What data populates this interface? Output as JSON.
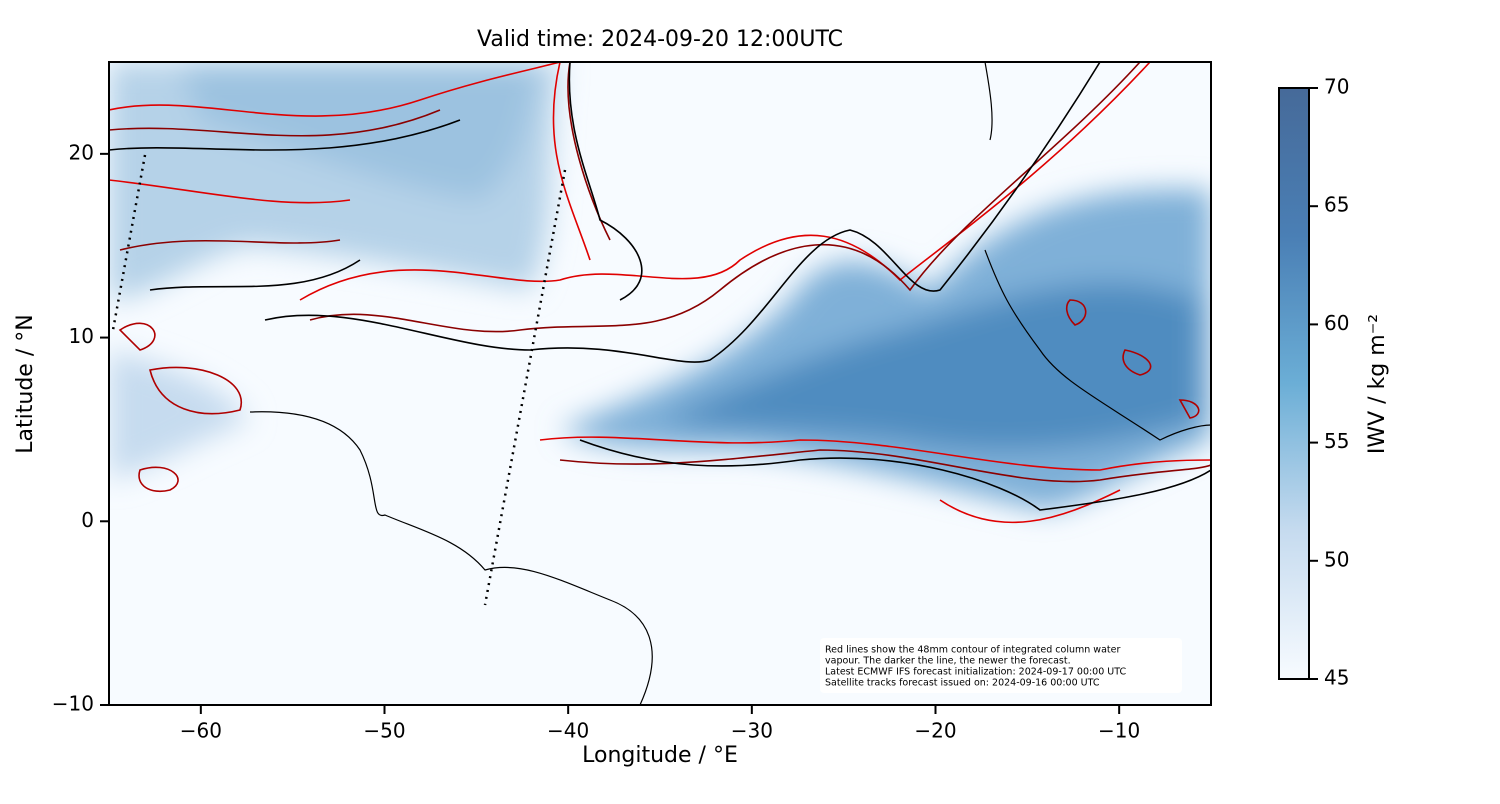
{
  "chart_data": {
    "type": "map",
    "title": "Valid time: 2024-09-20 12:00UTC",
    "x_label": "Longitude / °E",
    "y_label": "Latitude / °N",
    "xlim": [
      -65,
      -5
    ],
    "ylim": [
      -10,
      25
    ],
    "xticks": [
      {
        "value": -60,
        "label": "−60"
      },
      {
        "value": -50,
        "label": "−50"
      },
      {
        "value": -40,
        "label": "−40"
      },
      {
        "value": -30,
        "label": "−30"
      },
      {
        "value": -20,
        "label": "−20"
      },
      {
        "value": -10,
        "label": "−10"
      }
    ],
    "yticks": [
      {
        "value": -10,
        "label": "−10"
      },
      0,
      10,
      20
    ],
    "colorbar": {
      "label": "IWV / kg m⁻²",
      "lim": [
        45,
        70
      ],
      "ticks": [
        45,
        50,
        55,
        60,
        65,
        70
      ],
      "colors": [
        "#f7fbff",
        "#c6dbef",
        "#6baed6",
        "#4a7fb5",
        "#466a99"
      ]
    },
    "annotation": [
      "Red lines show the 48mm contour of integrated column water",
      "vapour. The darker the line, the newer the forecast.",
      "Latest ECMWF IFS forecast initialization: 2024-09-17 00:00 UTC",
      "Satellite tracks forecast issued on: 2024-09-16 00:00 UTC"
    ]
  }
}
